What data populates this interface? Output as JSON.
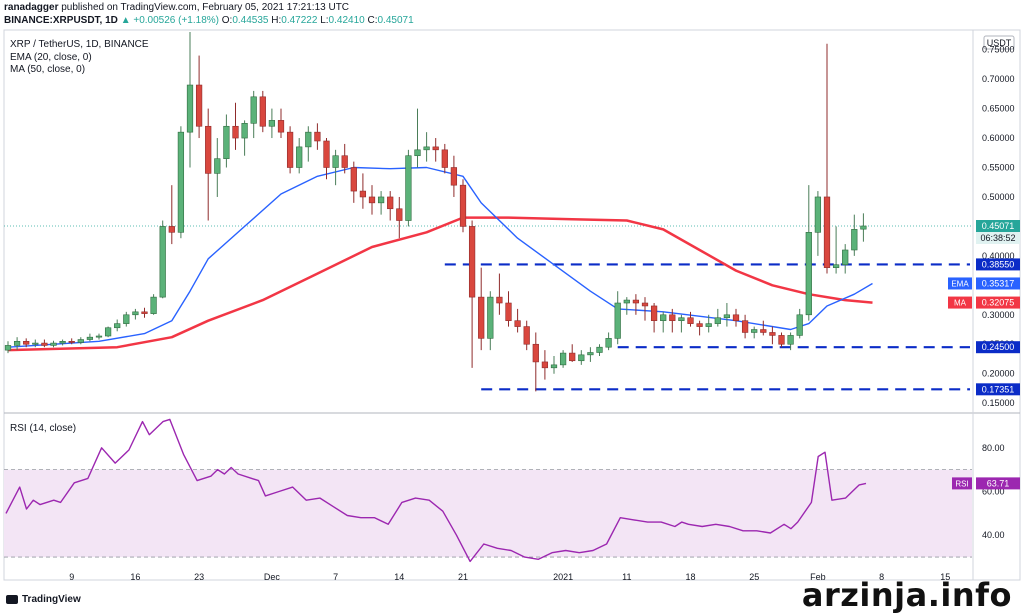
{
  "header": {
    "publisher": "ranadagger",
    "published_text": "published on TradingView.com, February 05, 2021 17:21:13 UTC",
    "symbol": "BINANCE:XRPUSDT, 1D",
    "open_label": "O:",
    "open_value": "0.44535",
    "high_label": "H:",
    "high_value": "0.47222",
    "low_label": "L:",
    "low_value": "0.42410",
    "close_label": "C:",
    "close_value": "0.45071",
    "last_value": "0.45071",
    "change": "▲ +0.00526 (+1.18%)"
  },
  "footer": {
    "brand": "TradingView",
    "watermark": "arzinja.info"
  },
  "colors": {
    "up": "#26a69a",
    "down": "#ef5350",
    "ema": "#2962ff",
    "ma": "#f23645",
    "level": "#0b2cc7",
    "rsi": "#9c27b0",
    "rsi_band": "#f3e5f5"
  },
  "chart_data": [
    {
      "type": "candlestick",
      "title": "XRP / TetherUS, 1D, BINANCE",
      "indicators": [
        {
          "label": "EMA (20, close, 0)",
          "tag": "EMA",
          "last": "0.35317"
        },
        {
          "label": "MA (50, close, 0)",
          "tag": "MA",
          "last": "0.32075"
        }
      ],
      "currency_label": "USDT",
      "countdown": "06:38:52",
      "ylim": [
        0.135,
        0.78
      ],
      "y_ticks": [
        "0.15000",
        "0.20000",
        "0.25000",
        "0.30000",
        "0.35000",
        "0.40000",
        "0.45000",
        "0.50000",
        "0.55000",
        "0.60000",
        "0.65000",
        "0.70000",
        "0.75000"
      ],
      "x_ticks": [
        {
          "day": 7,
          "label": "9"
        },
        {
          "day": 14,
          "label": "16"
        },
        {
          "day": 21,
          "label": "23"
        },
        {
          "day": 29,
          "label": "Dec"
        },
        {
          "day": 36,
          "label": "7"
        },
        {
          "day": 43,
          "label": "14"
        },
        {
          "day": 50,
          "label": "21"
        },
        {
          "day": 61,
          "label": "2021"
        },
        {
          "day": 68,
          "label": "11"
        },
        {
          "day": 75,
          "label": "18"
        },
        {
          "day": 82,
          "label": "25"
        },
        {
          "day": 89,
          "label": "Feb"
        },
        {
          "day": 96,
          "label": "8"
        },
        {
          "day": 103,
          "label": "15"
        }
      ],
      "levels": [
        {
          "value": 0.3855,
          "label": "0.38550",
          "from_day": 48
        },
        {
          "value": 0.245,
          "label": "0.24500",
          "from_day": 67
        },
        {
          "value": 0.17351,
          "label": "0.17351",
          "from_day": 52
        }
      ],
      "ohlc": [
        [
          0.24,
          0.255,
          0.235,
          0.248
        ],
        [
          0.248,
          0.262,
          0.24,
          0.255
        ],
        [
          0.255,
          0.26,
          0.245,
          0.25
        ],
        [
          0.25,
          0.258,
          0.245,
          0.252
        ],
        [
          0.252,
          0.258,
          0.245,
          0.248
        ],
        [
          0.248,
          0.256,
          0.245,
          0.252
        ],
        [
          0.252,
          0.258,
          0.248,
          0.255
        ],
        [
          0.255,
          0.26,
          0.25,
          0.253
        ],
        [
          0.253,
          0.262,
          0.25,
          0.258
        ],
        [
          0.258,
          0.268,
          0.255,
          0.262
        ],
        [
          0.262,
          0.268,
          0.258,
          0.264
        ],
        [
          0.264,
          0.28,
          0.262,
          0.278
        ],
        [
          0.278,
          0.292,
          0.272,
          0.285
        ],
        [
          0.285,
          0.305,
          0.28,
          0.3
        ],
        [
          0.3,
          0.31,
          0.292,
          0.305
        ],
        [
          0.305,
          0.312,
          0.295,
          0.302
        ],
        [
          0.302,
          0.335,
          0.3,
          0.33
        ],
        [
          0.33,
          0.46,
          0.328,
          0.45
        ],
        [
          0.45,
          0.52,
          0.42,
          0.44
        ],
        [
          0.44,
          0.62,
          0.43,
          0.61
        ],
        [
          0.61,
          0.78,
          0.55,
          0.69
        ],
        [
          0.69,
          0.74,
          0.6,
          0.62
        ],
        [
          0.62,
          0.65,
          0.46,
          0.54
        ],
        [
          0.54,
          0.6,
          0.5,
          0.565
        ],
        [
          0.565,
          0.64,
          0.55,
          0.62
        ],
        [
          0.62,
          0.66,
          0.58,
          0.6
        ],
        [
          0.6,
          0.63,
          0.57,
          0.625
        ],
        [
          0.625,
          0.68,
          0.6,
          0.67
        ],
        [
          0.67,
          0.68,
          0.61,
          0.62
        ],
        [
          0.62,
          0.65,
          0.6,
          0.63
        ],
        [
          0.63,
          0.65,
          0.6,
          0.61
        ],
        [
          0.61,
          0.62,
          0.54,
          0.55
        ],
        [
          0.55,
          0.6,
          0.54,
          0.585
        ],
        [
          0.585,
          0.62,
          0.56,
          0.61
        ],
        [
          0.61,
          0.625,
          0.58,
          0.595
        ],
        [
          0.595,
          0.6,
          0.53,
          0.55
        ],
        [
          0.55,
          0.58,
          0.52,
          0.57
        ],
        [
          0.57,
          0.59,
          0.54,
          0.55
        ],
        [
          0.55,
          0.56,
          0.49,
          0.51
        ],
        [
          0.51,
          0.54,
          0.48,
          0.5
        ],
        [
          0.5,
          0.52,
          0.47,
          0.49
        ],
        [
          0.49,
          0.51,
          0.47,
          0.5
        ],
        [
          0.5,
          0.51,
          0.46,
          0.48
        ],
        [
          0.48,
          0.5,
          0.43,
          0.46
        ],
        [
          0.46,
          0.58,
          0.45,
          0.57
        ],
        [
          0.57,
          0.65,
          0.55,
          0.58
        ],
        [
          0.58,
          0.61,
          0.56,
          0.585
        ],
        [
          0.585,
          0.6,
          0.56,
          0.58
        ],
        [
          0.58,
          0.59,
          0.54,
          0.55
        ],
        [
          0.55,
          0.57,
          0.5,
          0.52
        ],
        [
          0.52,
          0.53,
          0.44,
          0.45
        ],
        [
          0.45,
          0.46,
          0.21,
          0.33
        ],
        [
          0.33,
          0.38,
          0.24,
          0.26
        ],
        [
          0.26,
          0.34,
          0.24,
          0.33
        ],
        [
          0.33,
          0.37,
          0.3,
          0.32
        ],
        [
          0.32,
          0.34,
          0.28,
          0.29
        ],
        [
          0.29,
          0.31,
          0.27,
          0.28
        ],
        [
          0.28,
          0.29,
          0.24,
          0.25
        ],
        [
          0.25,
          0.27,
          0.17,
          0.22
        ],
        [
          0.22,
          0.24,
          0.19,
          0.21
        ],
        [
          0.21,
          0.23,
          0.2,
          0.215
        ],
        [
          0.215,
          0.24,
          0.21,
          0.235
        ],
        [
          0.235,
          0.25,
          0.22,
          0.222
        ],
        [
          0.222,
          0.24,
          0.215,
          0.232
        ],
        [
          0.232,
          0.245,
          0.22,
          0.236
        ],
        [
          0.236,
          0.25,
          0.23,
          0.245
        ],
        [
          0.245,
          0.27,
          0.24,
          0.26
        ],
        [
          0.26,
          0.34,
          0.25,
          0.32
        ],
        [
          0.32,
          0.33,
          0.3,
          0.325
        ],
        [
          0.325,
          0.335,
          0.3,
          0.32
        ],
        [
          0.32,
          0.33,
          0.29,
          0.315
        ],
        [
          0.315,
          0.32,
          0.27,
          0.29
        ],
        [
          0.29,
          0.305,
          0.27,
          0.3
        ],
        [
          0.3,
          0.31,
          0.27,
          0.29
        ],
        [
          0.29,
          0.3,
          0.27,
          0.295
        ],
        [
          0.295,
          0.305,
          0.28,
          0.285
        ],
        [
          0.285,
          0.29,
          0.265,
          0.28
        ],
        [
          0.28,
          0.3,
          0.27,
          0.285
        ],
        [
          0.285,
          0.31,
          0.28,
          0.295
        ],
        [
          0.295,
          0.32,
          0.28,
          0.3
        ],
        [
          0.3,
          0.31,
          0.28,
          0.29
        ],
        [
          0.29,
          0.3,
          0.26,
          0.27
        ],
        [
          0.27,
          0.28,
          0.26,
          0.275
        ],
        [
          0.275,
          0.29,
          0.265,
          0.27
        ],
        [
          0.27,
          0.28,
          0.25,
          0.265
        ],
        [
          0.265,
          0.27,
          0.245,
          0.25
        ],
        [
          0.25,
          0.27,
          0.24,
          0.265
        ],
        [
          0.265,
          0.31,
          0.26,
          0.3
        ],
        [
          0.3,
          0.52,
          0.29,
          0.44
        ],
        [
          0.44,
          0.51,
          0.4,
          0.5
        ],
        [
          0.5,
          0.76,
          0.37,
          0.38
        ],
        [
          0.38,
          0.45,
          0.37,
          0.385
        ],
        [
          0.385,
          0.42,
          0.37,
          0.41
        ],
        [
          0.41,
          0.47,
          0.4,
          0.445
        ],
        [
          0.44535,
          0.47222,
          0.4241,
          0.45071
        ]
      ],
      "ema": [
        [
          0,
          0.245
        ],
        [
          10,
          0.255
        ],
        [
          15,
          0.268
        ],
        [
          18,
          0.29
        ],
        [
          20,
          0.34
        ],
        [
          22,
          0.395
        ],
        [
          26,
          0.45
        ],
        [
          30,
          0.505
        ],
        [
          34,
          0.535
        ],
        [
          38,
          0.55
        ],
        [
          42,
          0.548
        ],
        [
          46,
          0.55
        ],
        [
          50,
          0.535
        ],
        [
          52,
          0.49
        ],
        [
          56,
          0.43
        ],
        [
          60,
          0.385
        ],
        [
          64,
          0.34
        ],
        [
          67,
          0.31
        ],
        [
          72,
          0.305
        ],
        [
          80,
          0.29
        ],
        [
          86,
          0.275
        ],
        [
          88,
          0.285
        ],
        [
          90,
          0.315
        ],
        [
          93,
          0.335
        ],
        [
          95,
          0.35317
        ]
      ],
      "ma": [
        [
          0,
          0.24
        ],
        [
          12,
          0.245
        ],
        [
          18,
          0.262
        ],
        [
          22,
          0.29
        ],
        [
          28,
          0.325
        ],
        [
          34,
          0.37
        ],
        [
          40,
          0.415
        ],
        [
          46,
          0.44
        ],
        [
          50,
          0.465
        ],
        [
          55,
          0.465
        ],
        [
          62,
          0.462
        ],
        [
          68,
          0.46
        ],
        [
          72,
          0.445
        ],
        [
          76,
          0.41
        ],
        [
          80,
          0.375
        ],
        [
          84,
          0.35
        ],
        [
          88,
          0.335
        ],
        [
          92,
          0.325
        ],
        [
          95,
          0.32075
        ]
      ]
    },
    {
      "type": "line",
      "title": "RSI (14, close)",
      "tag": "RSI",
      "last": "63.71",
      "ylim": [
        25,
        95
      ],
      "band": [
        30,
        70
      ],
      "y_ticks": [
        "40.00",
        "60.00",
        "80.00"
      ],
      "values": [
        [
          0,
          50
        ],
        [
          2,
          62
        ],
        [
          3,
          52
        ],
        [
          4,
          56
        ],
        [
          5,
          54
        ],
        [
          7,
          56
        ],
        [
          8,
          55
        ],
        [
          10,
          64
        ],
        [
          12,
          66
        ],
        [
          14,
          80
        ],
        [
          16,
          73
        ],
        [
          18,
          79
        ],
        [
          20,
          92
        ],
        [
          21,
          86
        ],
        [
          23,
          92
        ],
        [
          24,
          93
        ],
        [
          26,
          77
        ],
        [
          28,
          65
        ],
        [
          30,
          67
        ],
        [
          31,
          70
        ],
        [
          32,
          68
        ],
        [
          33,
          71
        ],
        [
          34,
          68
        ],
        [
          36,
          66
        ],
        [
          37,
          65
        ],
        [
          38,
          58
        ],
        [
          40,
          60
        ],
        [
          42,
          62
        ],
        [
          44,
          56
        ],
        [
          46,
          57
        ],
        [
          48,
          53
        ],
        [
          50,
          49
        ],
        [
          52,
          48
        ],
        [
          54,
          48
        ],
        [
          56,
          45
        ],
        [
          58,
          55
        ],
        [
          60,
          57
        ],
        [
          62,
          56
        ],
        [
          64,
          51
        ],
        [
          66,
          40
        ],
        [
          68,
          28
        ],
        [
          70,
          36
        ],
        [
          72,
          34
        ],
        [
          74,
          33
        ],
        [
          76,
          30
        ],
        [
          78,
          29
        ],
        [
          80,
          32
        ],
        [
          82,
          33
        ],
        [
          84,
          32
        ],
        [
          86,
          33
        ],
        [
          88,
          36
        ],
        [
          90,
          48
        ],
        [
          92,
          47
        ],
        [
          94,
          46
        ],
        [
          96,
          46
        ],
        [
          98,
          44
        ],
        [
          99,
          46
        ],
        [
          100,
          45
        ],
        [
          102,
          44
        ],
        [
          104,
          45
        ],
        [
          106,
          44
        ],
        [
          108,
          42
        ],
        [
          110,
          42
        ],
        [
          112,
          41
        ],
        [
          114,
          45
        ],
        [
          115,
          43
        ],
        [
          116,
          46
        ],
        [
          118,
          55
        ],
        [
          119,
          76
        ],
        [
          120,
          78
        ],
        [
          121,
          56
        ],
        [
          123,
          57
        ],
        [
          124,
          60
        ],
        [
          125,
          63
        ],
        [
          126,
          63.71
        ]
      ]
    }
  ]
}
